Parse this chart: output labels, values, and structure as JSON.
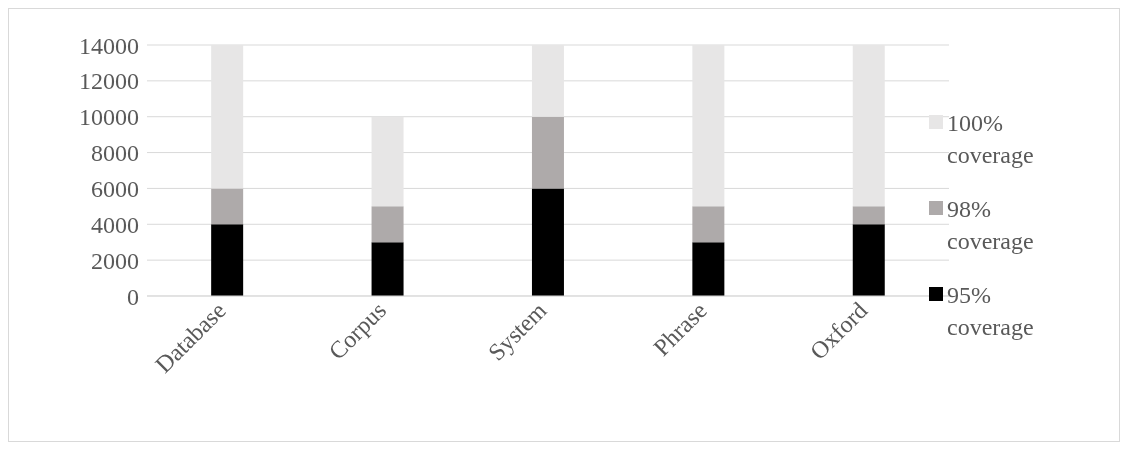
{
  "chart_data": {
    "type": "bar",
    "stacked": true,
    "categories": [
      "Database",
      "Corpus",
      "System",
      "Phrase",
      "Oxford"
    ],
    "series": [
      {
        "name": "95% coverage",
        "color": "#000000",
        "values": [
          4000,
          3000,
          6000,
          3000,
          4000
        ]
      },
      {
        "name": "98% coverage",
        "color": "#aeaaaa",
        "values": [
          2000,
          2000,
          4000,
          2000,
          1000
        ]
      },
      {
        "name": "100% coverage",
        "color": "#e7e6e6",
        "values": [
          8000,
          5000,
          4000,
          9000,
          9000
        ]
      }
    ],
    "ylim": [
      0,
      14000
    ],
    "yticks": [
      0,
      2000,
      4000,
      6000,
      8000,
      10000,
      12000,
      14000
    ],
    "grid": "y",
    "legend": "right"
  }
}
